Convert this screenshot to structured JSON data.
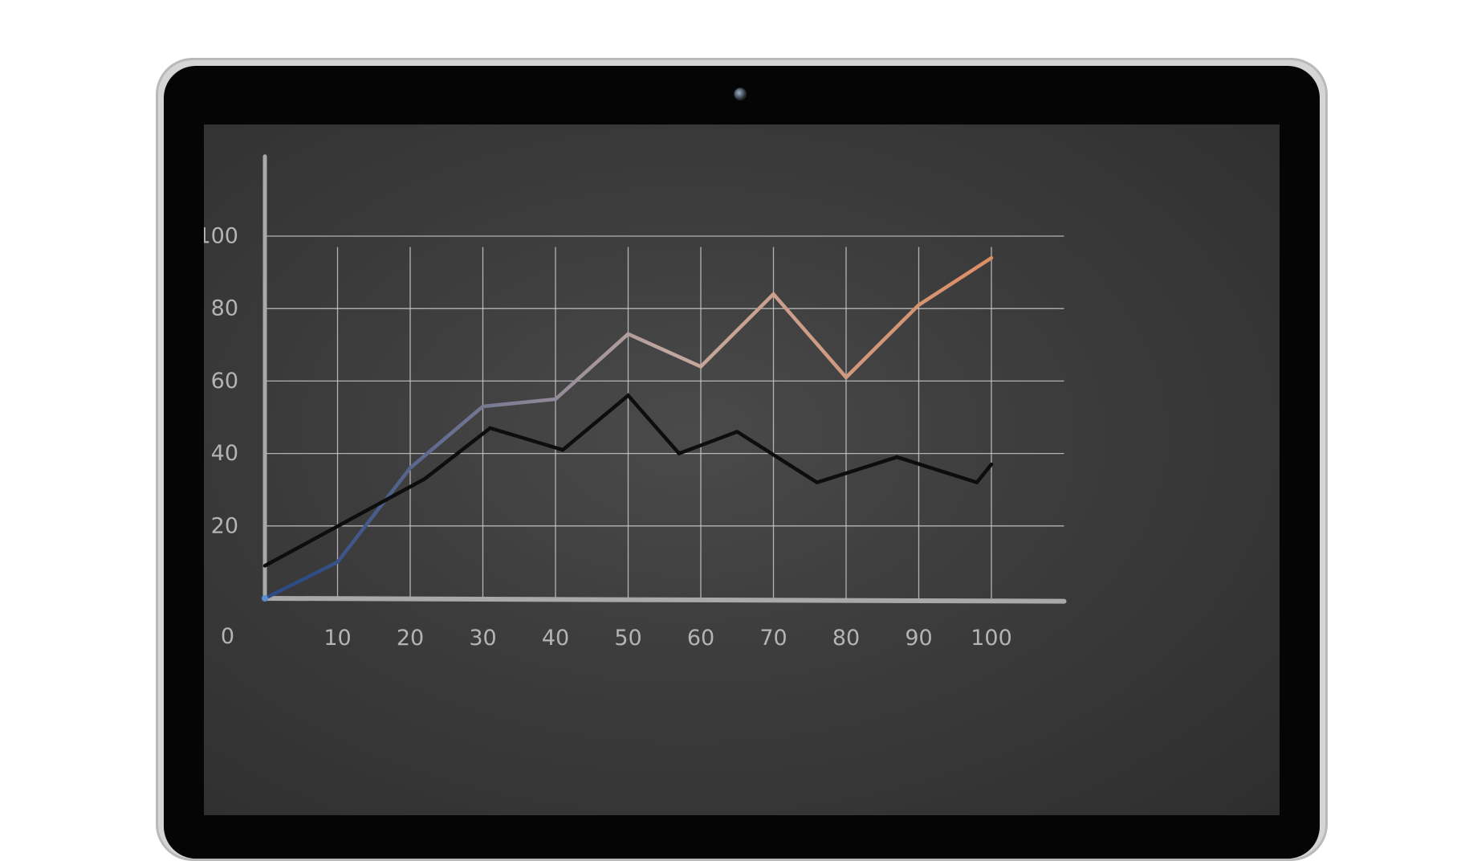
{
  "chart_data": {
    "type": "line",
    "x": [
      0,
      10,
      20,
      30,
      40,
      50,
      60,
      70,
      80,
      90,
      100
    ],
    "xlim": [
      0,
      100
    ],
    "ylim": [
      0,
      100
    ],
    "x_ticks": [
      "10",
      "20",
      "30",
      "40",
      "50",
      "60",
      "70",
      "80",
      "90",
      "100"
    ],
    "y_ticks": [
      "20",
      "40",
      "60",
      "80",
      "100"
    ],
    "origin_label": "0",
    "grid": true,
    "series": [
      {
        "color_start": "#2e4b86",
        "color_mid": "#c2a8a0",
        "color_end": "#e8844e",
        "points": [
          [
            0,
            0
          ],
          [
            10,
            10
          ],
          [
            20,
            36
          ],
          [
            30,
            53
          ],
          [
            40,
            55
          ],
          [
            50,
            73
          ],
          [
            60,
            64
          ],
          [
            70,
            84
          ],
          [
            80,
            61
          ],
          [
            90,
            81
          ],
          [
            100,
            94
          ]
        ]
      },
      {
        "color": "#0d0d0d",
        "points": [
          [
            0,
            9
          ],
          [
            22,
            33
          ],
          [
            31,
            47
          ],
          [
            41,
            41
          ],
          [
            50,
            56
          ],
          [
            57,
            40
          ],
          [
            65,
            46
          ],
          [
            76,
            32
          ],
          [
            87,
            39
          ],
          [
            98,
            32
          ],
          [
            100,
            37
          ]
        ]
      }
    ]
  }
}
